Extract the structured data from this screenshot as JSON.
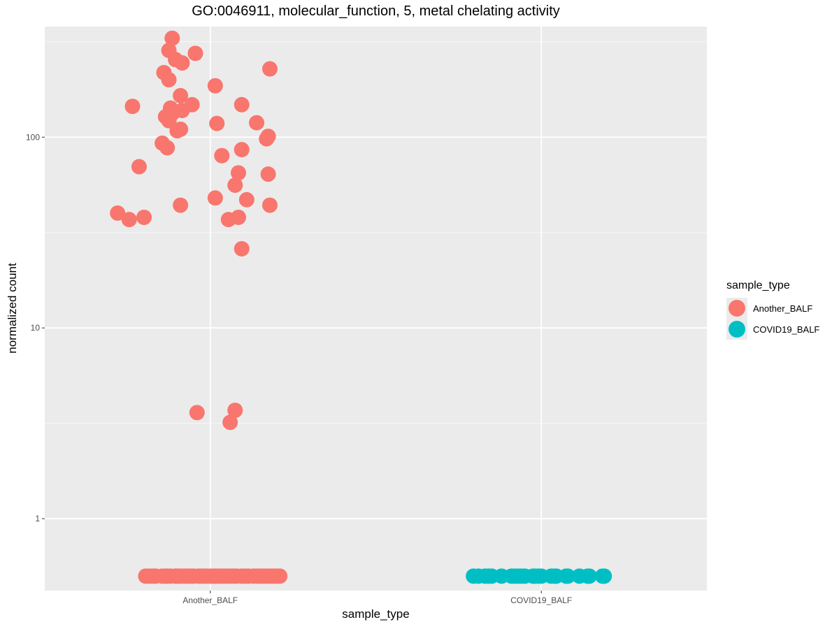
{
  "chart_data": {
    "type": "scatter",
    "title": "GO:0046911, molecular_function, 5, metal chelating activity",
    "xlabel": "sample_type",
    "ylabel": "normalized count",
    "y_scale": "log10",
    "y_ticks": [
      "1",
      "10",
      "100"
    ],
    "y_tick_values": [
      1,
      10,
      100
    ],
    "ylim": [
      0.42,
      380
    ],
    "categories": [
      "Another_BALF",
      "COVID19_BALF"
    ],
    "grid": true,
    "legend_position": "right",
    "legend": {
      "title": "sample_type",
      "entries": [
        {
          "label": "Another_BALF",
          "color": "#F8766D"
        },
        {
          "label": "COVID19_BALF",
          "color": "#00BFC4"
        }
      ]
    },
    "series": [
      {
        "name": "Another_BALF",
        "color": "#F8766D",
        "category": "Another_BALF",
        "points": [
          {
            "x": -0.23,
            "y": 330
          },
          {
            "x": -0.25,
            "y": 285
          },
          {
            "x": -0.09,
            "y": 275
          },
          {
            "x": -0.21,
            "y": 255
          },
          {
            "x": -0.17,
            "y": 245
          },
          {
            "x": 0.36,
            "y": 228
          },
          {
            "x": -0.28,
            "y": 218
          },
          {
            "x": -0.25,
            "y": 200
          },
          {
            "x": 0.03,
            "y": 186
          },
          {
            "x": -0.18,
            "y": 165
          },
          {
            "x": 0.19,
            "y": 148
          },
          {
            "x": -0.11,
            "y": 148
          },
          {
            "x": -0.24,
            "y": 142
          },
          {
            "x": -0.17,
            "y": 138
          },
          {
            "x": -0.47,
            "y": 145
          },
          {
            "x": -0.23,
            "y": 133
          },
          {
            "x": -0.27,
            "y": 128
          },
          {
            "x": -0.25,
            "y": 122
          },
          {
            "x": 0.28,
            "y": 119
          },
          {
            "x": 0.04,
            "y": 118
          },
          {
            "x": -0.18,
            "y": 110
          },
          {
            "x": -0.2,
            "y": 108
          },
          {
            "x": 0.35,
            "y": 101
          },
          {
            "x": 0.34,
            "y": 98
          },
          {
            "x": -0.29,
            "y": 93
          },
          {
            "x": -0.26,
            "y": 88
          },
          {
            "x": 0.19,
            "y": 86
          },
          {
            "x": 0.07,
            "y": 80
          },
          {
            "x": 0.35,
            "y": 64
          },
          {
            "x": -0.43,
            "y": 70
          },
          {
            "x": 0.17,
            "y": 65
          },
          {
            "x": 0.15,
            "y": 56
          },
          {
            "x": 0.03,
            "y": 48
          },
          {
            "x": -0.18,
            "y": 44
          },
          {
            "x": 0.11,
            "y": 37
          },
          {
            "x": 0.22,
            "y": 47
          },
          {
            "x": 0.36,
            "y": 44
          },
          {
            "x": 0.17,
            "y": 38
          },
          {
            "x": -0.56,
            "y": 40
          },
          {
            "x": -0.4,
            "y": 38
          },
          {
            "x": -0.49,
            "y": 37
          },
          {
            "x": 0.19,
            "y": 26
          },
          {
            "x": -0.08,
            "y": 3.6
          },
          {
            "x": 0.15,
            "y": 3.7
          },
          {
            "x": 0.12,
            "y": 3.2
          },
          {
            "x": -0.39,
            "y": 0.5
          },
          {
            "x": -0.37,
            "y": 0.5
          },
          {
            "x": -0.35,
            "y": 0.5
          },
          {
            "x": -0.33,
            "y": 0.5
          },
          {
            "x": -0.29,
            "y": 0.5
          },
          {
            "x": -0.27,
            "y": 0.5
          },
          {
            "x": -0.26,
            "y": 0.5
          },
          {
            "x": -0.24,
            "y": 0.5
          },
          {
            "x": -0.21,
            "y": 0.5
          },
          {
            "x": -0.2,
            "y": 0.5
          },
          {
            "x": -0.19,
            "y": 0.5
          },
          {
            "x": -0.17,
            "y": 0.5
          },
          {
            "x": -0.15,
            "y": 0.5
          },
          {
            "x": -0.14,
            "y": 0.5
          },
          {
            "x": -0.12,
            "y": 0.5
          },
          {
            "x": -0.1,
            "y": 0.5
          },
          {
            "x": -0.07,
            "y": 0.5
          },
          {
            "x": -0.06,
            "y": 0.5
          },
          {
            "x": -0.04,
            "y": 0.5
          },
          {
            "x": -0.02,
            "y": 0.5
          },
          {
            "x": 0.0,
            "y": 0.5
          },
          {
            "x": 0.02,
            "y": 0.5
          },
          {
            "x": 0.03,
            "y": 0.5
          },
          {
            "x": 0.05,
            "y": 0.5
          },
          {
            "x": 0.06,
            "y": 0.5
          },
          {
            "x": 0.08,
            "y": 0.5
          },
          {
            "x": 0.1,
            "y": 0.5
          },
          {
            "x": 0.12,
            "y": 0.5
          },
          {
            "x": 0.14,
            "y": 0.5
          },
          {
            "x": 0.16,
            "y": 0.5
          },
          {
            "x": 0.19,
            "y": 0.5
          },
          {
            "x": 0.21,
            "y": 0.5
          },
          {
            "x": 0.23,
            "y": 0.5
          },
          {
            "x": 0.26,
            "y": 0.5
          },
          {
            "x": 0.28,
            "y": 0.5
          },
          {
            "x": 0.3,
            "y": 0.5
          },
          {
            "x": 0.32,
            "y": 0.5
          },
          {
            "x": 0.34,
            "y": 0.5
          },
          {
            "x": 0.36,
            "y": 0.5
          },
          {
            "x": 0.38,
            "y": 0.5
          },
          {
            "x": 0.4,
            "y": 0.5
          },
          {
            "x": 0.42,
            "y": 0.5
          }
        ]
      },
      {
        "name": "COVID19_BALF",
        "color": "#00BFC4",
        "category": "COVID19_BALF",
        "points": [
          {
            "x": -0.41,
            "y": 0.5
          },
          {
            "x": -0.38,
            "y": 0.5
          },
          {
            "x": -0.34,
            "y": 0.5
          },
          {
            "x": -0.32,
            "y": 0.5
          },
          {
            "x": -0.3,
            "y": 0.5
          },
          {
            "x": -0.24,
            "y": 0.5
          },
          {
            "x": -0.18,
            "y": 0.5
          },
          {
            "x": -0.16,
            "y": 0.5
          },
          {
            "x": -0.14,
            "y": 0.5
          },
          {
            "x": -0.12,
            "y": 0.5
          },
          {
            "x": -0.1,
            "y": 0.5
          },
          {
            "x": -0.05,
            "y": 0.5
          },
          {
            "x": -0.04,
            "y": 0.5
          },
          {
            "x": -0.02,
            "y": 0.5
          },
          {
            "x": 0.0,
            "y": 0.5
          },
          {
            "x": 0.06,
            "y": 0.5
          },
          {
            "x": 0.08,
            "y": 0.5
          },
          {
            "x": 0.09,
            "y": 0.5
          },
          {
            "x": 0.15,
            "y": 0.5
          },
          {
            "x": 0.16,
            "y": 0.5
          },
          {
            "x": 0.23,
            "y": 0.5
          },
          {
            "x": 0.28,
            "y": 0.5
          },
          {
            "x": 0.29,
            "y": 0.5
          },
          {
            "x": 0.37,
            "y": 0.5
          },
          {
            "x": 0.38,
            "y": 0.5
          }
        ]
      }
    ]
  }
}
